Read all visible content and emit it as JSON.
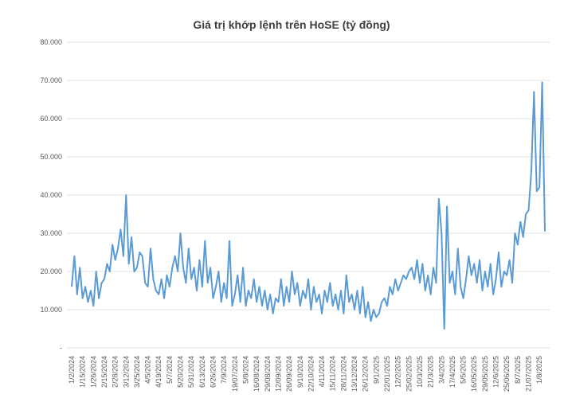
{
  "chart_data": {
    "type": "line",
    "title": "Giá trị khớp lệnh trên HoSE (tỷ đồng)",
    "categories": [
      "1/2/2024",
      null,
      null,
      null,
      "1/15/2024",
      null,
      null,
      null,
      "1/26/2024",
      null,
      null,
      null,
      "2/15/2024",
      null,
      null,
      null,
      "2/28/2024",
      null,
      null,
      null,
      "3/12/2024",
      null,
      null,
      null,
      "3/25/2024",
      null,
      null,
      null,
      "4/5/2024",
      null,
      null,
      null,
      "4/19/2024",
      null,
      null,
      null,
      "5/7/2024",
      null,
      null,
      null,
      "5/20/2024",
      null,
      null,
      null,
      "5/31/2024",
      null,
      null,
      null,
      "6/13/2024",
      null,
      null,
      null,
      "6/26/2024",
      null,
      null,
      null,
      "7/9/2024",
      null,
      null,
      null,
      "19/07/2024",
      null,
      null,
      null,
      "5/8/2024",
      null,
      null,
      null,
      "16/08/2024",
      null,
      null,
      null,
      "29/08/2024",
      null,
      null,
      null,
      "12/09/2024",
      null,
      null,
      null,
      "26/09/2024",
      null,
      null,
      null,
      "9/10/2024",
      null,
      null,
      null,
      "22/10/2024",
      null,
      null,
      null,
      "4/11/2024",
      null,
      null,
      null,
      "15/11/2024",
      null,
      null,
      null,
      "28/11/2024",
      null,
      null,
      null,
      "13/12/2024",
      null,
      null,
      null,
      "26/12/2024",
      null,
      null,
      null,
      "9/1/2025",
      null,
      null,
      null,
      "22/01/2025",
      null,
      null,
      null,
      "12/2/2025",
      null,
      null,
      null,
      "25/02/2025",
      null,
      null,
      null,
      "10/3/2025",
      null,
      null,
      null,
      "21/3/2025",
      null,
      null,
      null,
      "3/4/2025",
      null,
      null,
      null,
      "17/4/2025",
      null,
      null,
      null,
      "5/5/2025",
      null,
      null,
      null,
      "16/05/2025",
      null,
      null,
      null,
      "29/05/2025",
      null,
      null,
      null,
      "12/6/2025",
      null,
      null,
      null,
      "25/06/2025",
      null,
      null,
      null,
      "8/7/2025",
      null,
      null,
      null,
      "21/07/2025",
      null,
      null,
      null,
      "1/8/2025",
      null,
      null
    ],
    "series": [
      {
        "name": "Giá trị khớp lệnh",
        "color": "#5b9bd5",
        "values": [
          16000,
          24000,
          14000,
          21000,
          13000,
          16000,
          12000,
          15000,
          11000,
          20000,
          13000,
          17000,
          18000,
          22000,
          20000,
          27000,
          23000,
          26000,
          31000,
          24000,
          40000,
          22000,
          29000,
          20000,
          21000,
          25000,
          24000,
          17000,
          16000,
          26000,
          18000,
          15000,
          14000,
          18000,
          13000,
          19000,
          16000,
          21000,
          24000,
          20000,
          30000,
          21000,
          17000,
          26000,
          18000,
          21000,
          15000,
          23000,
          16000,
          28000,
          17000,
          21000,
          13000,
          16000,
          20000,
          12000,
          17000,
          13000,
          28000,
          11000,
          14000,
          19000,
          12000,
          21000,
          11000,
          15000,
          13000,
          18000,
          12000,
          16000,
          11000,
          15000,
          10000,
          14000,
          9000,
          13000,
          12000,
          18000,
          11000,
          16000,
          12000,
          20000,
          14000,
          17000,
          11000,
          15000,
          13000,
          18000,
          10000,
          16000,
          12000,
          14000,
          9000,
          15000,
          12000,
          17000,
          11000,
          14000,
          10000,
          15000,
          9000,
          19000,
          12000,
          14000,
          10000,
          15000,
          9000,
          16000,
          8000,
          12000,
          7000,
          10000,
          8000,
          9000,
          12000,
          13000,
          11000,
          16000,
          14000,
          18000,
          15000,
          17000,
          19000,
          18000,
          20000,
          21000,
          18000,
          23000,
          17000,
          22000,
          15000,
          19000,
          14000,
          21000,
          17000,
          39000,
          30000,
          5000,
          37000,
          17000,
          20000,
          14000,
          26000,
          16000,
          13000,
          18000,
          24000,
          19000,
          22000,
          17000,
          23000,
          15000,
          20000,
          16000,
          22000,
          14000,
          18000,
          25000,
          16000,
          20000,
          19000,
          23000,
          17000,
          30000,
          27000,
          33000,
          29000,
          35000,
          36000,
          46000,
          67000,
          41000,
          42000,
          69500,
          30500
        ]
      }
    ],
    "ylim": [
      0,
      80000
    ],
    "yticks": [
      {
        "value": 0,
        "label": "-"
      },
      {
        "value": 10000,
        "label": "10.000"
      },
      {
        "value": 20000,
        "label": "20.000"
      },
      {
        "value": 30000,
        "label": "30.000"
      },
      {
        "value": 40000,
        "label": "40.000"
      },
      {
        "value": 50000,
        "label": "50.000"
      },
      {
        "value": 60000,
        "label": "60.000"
      },
      {
        "value": 70000,
        "label": "70.000"
      },
      {
        "value": 80000,
        "label": "80.000"
      }
    ],
    "grid": true
  }
}
